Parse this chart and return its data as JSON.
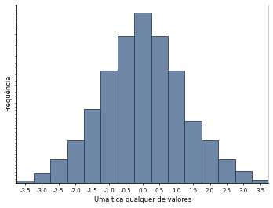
{
  "bin_edges": [
    -3.75,
    -3.25,
    -2.75,
    -2.25,
    -1.75,
    -1.25,
    -0.75,
    -0.25,
    0.25,
    0.75,
    1.25,
    1.75,
    2.25,
    2.75,
    3.25,
    3.75
  ],
  "bin_centers": [
    -3.5,
    -3.0,
    -2.5,
    -2.0,
    -1.5,
    -1.0,
    -0.5,
    0.0,
    0.5,
    1.0,
    1.5,
    2.0,
    2.5,
    3.0,
    3.5
  ],
  "frequencies": [
    0.3,
    1.2,
    3.0,
    5.5,
    9.5,
    14.5,
    19.0,
    22.0,
    19.0,
    14.5,
    8.0,
    5.5,
    3.0,
    1.5,
    0.4
  ],
  "bar_color": "#7088a8",
  "bar_edgecolor": "#2c3e55",
  "xlabel": "Uma tica qualquer de valores",
  "ylabel": "Frequência",
  "xlim": [
    -3.75,
    3.75
  ],
  "xticks": [
    -3.5,
    -3.0,
    -2.5,
    -2.0,
    -1.5,
    -1.0,
    -0.5,
    0.0,
    0.5,
    1.0,
    1.5,
    2.0,
    2.5,
    3.0,
    3.5
  ],
  "xtick_labels": [
    "-3.5",
    "-3.0",
    "-2.5",
    "-2.0",
    "-1.5",
    "-1.0",
    "-0.5",
    "0.0",
    "0.5",
    "1.0",
    "1.5",
    "2.0",
    "2.5",
    "3.0",
    "3.5"
  ],
  "bar_width": 0.5,
  "tick_fontsize": 5.0,
  "label_fontsize": 6.0,
  "background_color": "#ffffff"
}
